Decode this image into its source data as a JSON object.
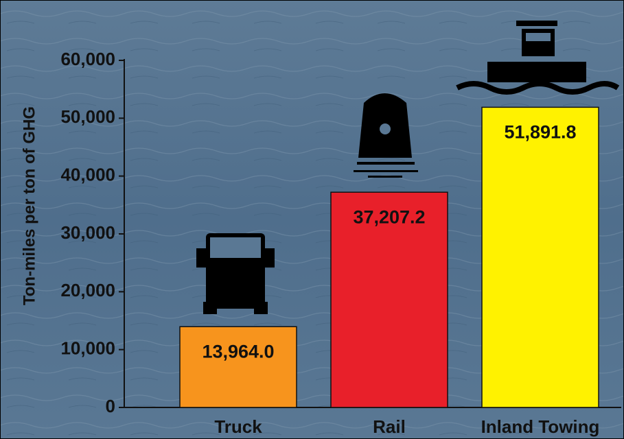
{
  "chart_data": {
    "type": "bar",
    "y_label": "Ton-miles per ton of GHG",
    "categories": [
      "Truck",
      "Rail",
      "Inland Towing"
    ],
    "values": [
      13964.0,
      37207.2,
      51891.8
    ],
    "value_labels": [
      "13,964.0",
      "37,207.2",
      "51,891.8"
    ],
    "colors": [
      "#f7941d",
      "#e8202a",
      "#fff200"
    ],
    "ylim": [
      0,
      60000
    ],
    "yticks": [
      0,
      {
        "value": 10000,
        "label": "10,000"
      },
      {
        "value": 20000,
        "label": "20,000"
      },
      {
        "value": 30000,
        "label": "30,000"
      },
      {
        "value": 40000,
        "label": "40,000"
      },
      {
        "value": 50000,
        "label": "50,000"
      },
      {
        "value": 60000,
        "label": "60,000"
      }
    ]
  }
}
